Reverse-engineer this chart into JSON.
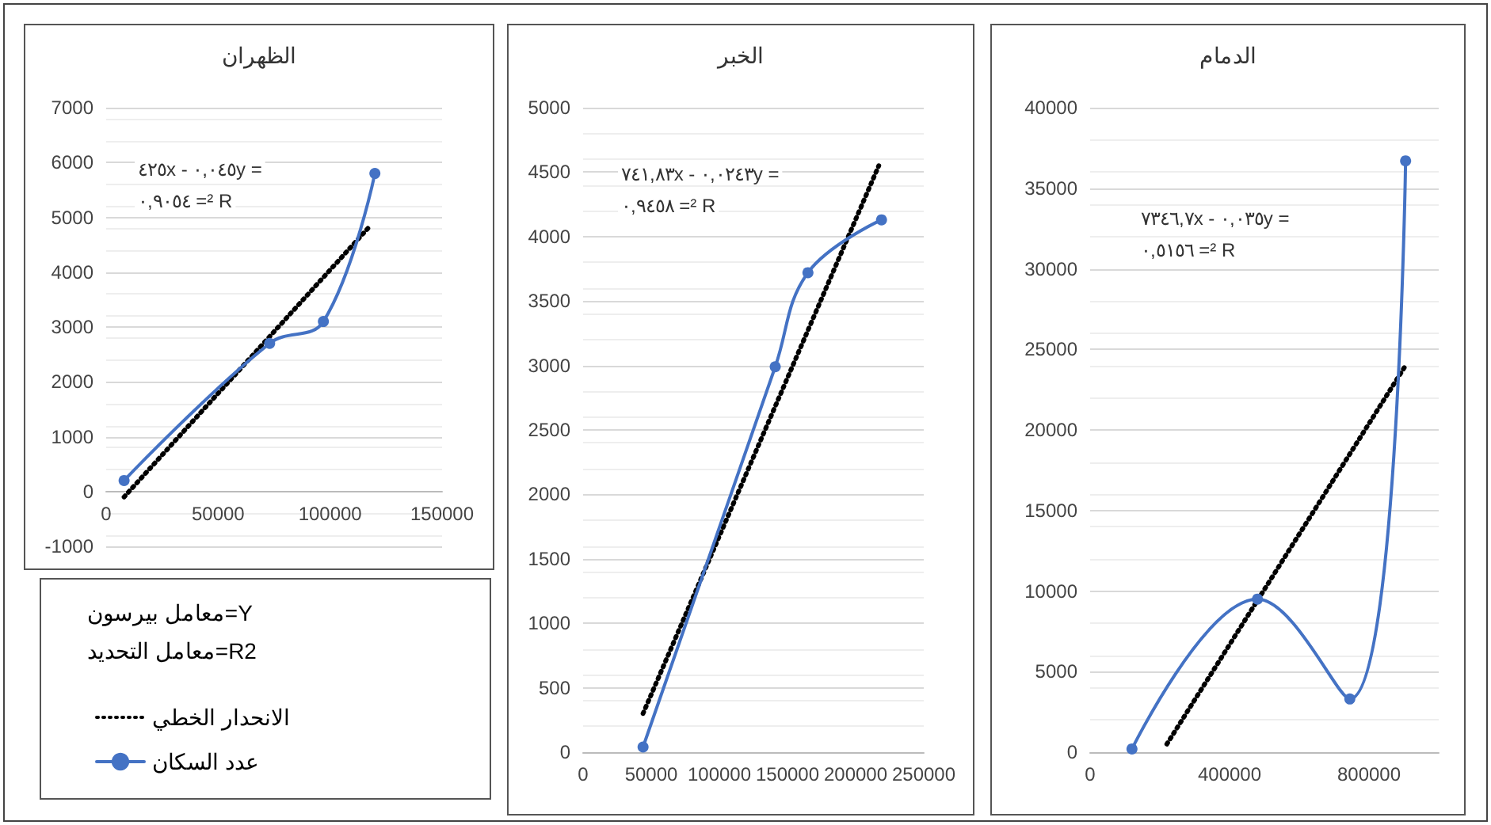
{
  "chart_data": [
    {
      "type": "line",
      "title": "الظهران",
      "xlim": [
        0,
        150000
      ],
      "xticks": [
        0,
        50000,
        100000,
        150000
      ],
      "ylim": [
        -1000,
        7000
      ],
      "yticks": [
        -1000,
        0,
        1000,
        2000,
        3000,
        4000,
        5000,
        6000,
        7000
      ],
      "grid": "y",
      "legend": "bottom",
      "annotations": [
        "٤٢٥x - ٠,٠٤٥y =",
        "٠,٩٠٥٤ =² R",
        "معامل بيرسون=Y",
        "معامل التحديد=R2"
      ],
      "series": [
        {
          "name": "الانحدار الخطي",
          "color": "#000000",
          "x": [
            8000,
            118000
          ],
          "values": [
            -100,
            4850
          ],
          "marker": "none",
          "line_style": "dotted"
        },
        {
          "name": "عدد السكان",
          "color": "#4472c4",
          "x": [
            8000,
            73000,
            97000,
            120000
          ],
          "values": [
            200,
            2700,
            3100,
            5800
          ],
          "marker": "circle",
          "line_style": "solid"
        }
      ]
    },
    {
      "type": "line",
      "title": "الخبر",
      "xlim": [
        0,
        250000
      ],
      "xticks": [
        0,
        50000,
        100000,
        150000,
        200000,
        250000
      ],
      "ylim": [
        0,
        5000
      ],
      "yticks": [
        0,
        500,
        1000,
        1500,
        2000,
        2500,
        3000,
        3500,
        4000,
        4500,
        5000
      ],
      "grid": "y",
      "annotations": [
        "٧٤١,٨٣x - ٠,٠٢٤٣y =",
        "٠,٩٤٥٨ =² R"
      ],
      "series": [
        {
          "color": "#000000",
          "x": [
            44000,
            217000
          ],
          "values": [
            300,
            4550
          ],
          "marker": "none",
          "line_style": "dotted"
        },
        {
          "color": "#4472c4",
          "x": [
            44000,
            141000,
            165000,
            219000
          ],
          "values": [
            40,
            2990,
            3720,
            4130
          ],
          "marker": "circle",
          "line_style": "solid"
        }
      ]
    },
    {
      "type": "line",
      "title": "الدمام",
      "xlim": [
        0,
        1000000
      ],
      "xticks": [
        0,
        400000,
        800000
      ],
      "ylim": [
        0,
        40000
      ],
      "yticks": [
        0,
        5000,
        10000,
        15000,
        20000,
        25000,
        30000,
        35000,
        40000
      ],
      "grid": "y",
      "annotations": [
        "٧٣٤٦,٧x - ٠,٠٣٥y =",
        "٠,٥١٥٦ =² R"
      ],
      "series": [
        {
          "color": "#000000",
          "x": [
            220000,
            905000
          ],
          "values": [
            500,
            24000
          ],
          "marker": "none",
          "line_style": "dotted"
        },
        {
          "color": "#4472c4",
          "x": [
            120000,
            480000,
            745000,
            905000
          ],
          "values": [
            200,
            9500,
            3300,
            36700
          ],
          "marker": "circle",
          "line_style": "solid"
        }
      ]
    }
  ]
}
